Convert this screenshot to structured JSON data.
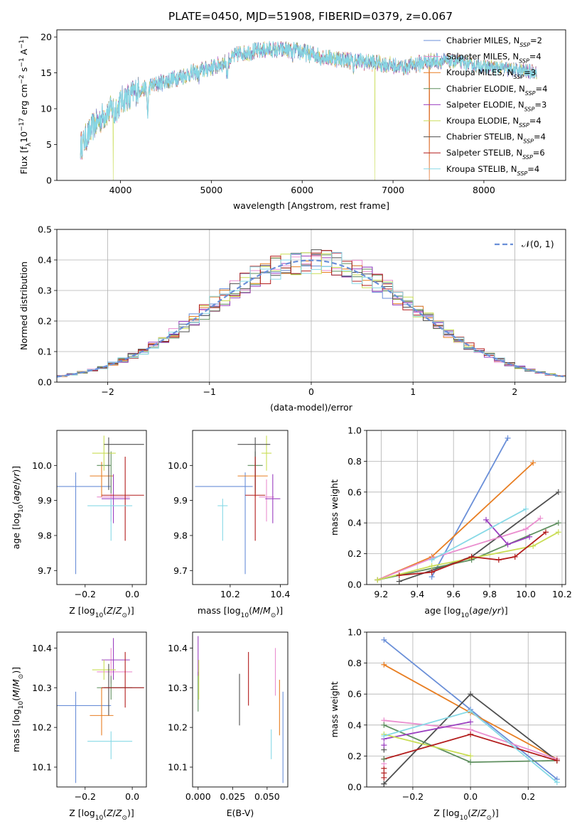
{
  "figure_title": "PLATE=0450, MJD=51908, FIBERID=0379, z=0.067",
  "colors": {
    "c1": "#6a8fd8",
    "c2": "#e87e22",
    "c3": "#4f4f4f",
    "c4": "#ea8ecf",
    "c5": "#5f8f5f",
    "c6": "#9b3fc0",
    "c7": "#c9dd55",
    "c8": "#b31d1d",
    "c9": "#87d9e6"
  },
  "chart_data": [
    {
      "id": "spectrum",
      "type": "line",
      "xlabel": "wavelength [Angstrom, rest frame]",
      "ylabel": "Flux [f_λ10^-17 erg cm^-2 s^-1 A^-1]",
      "xlim": [
        3300,
        8900
      ],
      "ylim": [
        0,
        21
      ],
      "xticks": [
        4000,
        5000,
        6000,
        7000,
        8000
      ],
      "yticks": [
        0,
        5,
        10,
        15,
        20
      ],
      "legend_position": "upper right",
      "grid": false,
      "continuum_knots": [
        [
          3550,
          4.5
        ],
        [
          3700,
          7.5
        ],
        [
          3850,
          9.5
        ],
        [
          4000,
          11
        ],
        [
          4150,
          12.3
        ],
        [
          4300,
          13
        ],
        [
          4500,
          13.8
        ],
        [
          4800,
          15
        ],
        [
          5100,
          16.1
        ],
        [
          5300,
          17.7
        ],
        [
          5600,
          18.2
        ],
        [
          5900,
          18.2
        ],
        [
          6200,
          17.3
        ],
        [
          6500,
          16.8
        ],
        [
          6800,
          16.4
        ],
        [
          7100,
          15.8
        ],
        [
          7400,
          16.6
        ],
        [
          7700,
          16.6
        ],
        [
          7900,
          16.0
        ],
        [
          8050,
          15.8
        ],
        [
          8200,
          15.6
        ],
        [
          8400,
          15.3
        ],
        [
          8600,
          15.1
        ]
      ],
      "absorption_features": [
        [
          3934,
          1.5
        ],
        [
          3969,
          1.0
        ],
        [
          4102,
          1.0
        ],
        [
          4300,
          3.5
        ],
        [
          4861,
          1.0
        ],
        [
          5175,
          2.0
        ],
        [
          5890,
          1.0
        ],
        [
          6563,
          1.0
        ]
      ],
      "spikes": [
        [
          3920,
          0
        ],
        [
          6800,
          0
        ],
        [
          7400,
          0
        ]
      ],
      "series": [
        {
          "name": "Chabrier MILES, N_SSP=2",
          "color_key": "c1"
        },
        {
          "name": "Salpeter MILES, N_SSP=4",
          "color_key": "c4"
        },
        {
          "name": "Kroupa MILES, N_SSP=3",
          "color_key": "c2"
        },
        {
          "name": "Chabrier ELODIE, N_SSP=4",
          "color_key": "c5"
        },
        {
          "name": "Salpeter ELODIE, N_SSP=3",
          "color_key": "c6"
        },
        {
          "name": "Kroupa ELODIE, N_SSP=4",
          "color_key": "c7"
        },
        {
          "name": "Chabrier STELIB, N_SSP=4",
          "color_key": "c3"
        },
        {
          "name": "Salpeter STELIB, N_SSP=6",
          "color_key": "c8"
        },
        {
          "name": "Kroupa STELIB, N_SSP=4",
          "color_key": "c9"
        }
      ],
      "legend_items": [
        {
          "prefix": "Chabrier MILES, N",
          "sub": "SSP",
          "suffix": "=2",
          "color_key": "c1"
        },
        {
          "prefix": "Salpeter MILES, N",
          "sub": "SSP",
          "suffix": "=4",
          "color_key": "c4"
        },
        {
          "prefix": "Kroupa MILES, N",
          "sub": "SSP",
          "suffix": "=3",
          "color_key": "c2"
        },
        {
          "prefix": "Chabrier ELODIE, N",
          "sub": "SSP",
          "suffix": "=4",
          "color_key": "c5"
        },
        {
          "prefix": "Salpeter ELODIE, N",
          "sub": "SSP",
          "suffix": "=3",
          "color_key": "c6"
        },
        {
          "prefix": "Kroupa ELODIE, N",
          "sub": "SSP",
          "suffix": "=4",
          "color_key": "c7"
        },
        {
          "prefix": "Chabrier STELIB, N",
          "sub": "SSP",
          "suffix": "=4",
          "color_key": "c3"
        },
        {
          "prefix": "Salpeter STELIB, N",
          "sub": "SSP",
          "suffix": "=6",
          "color_key": "c8"
        },
        {
          "prefix": "Kroupa STELIB, N",
          "sub": "SSP",
          "suffix": "=4",
          "color_key": "c9"
        }
      ]
    },
    {
      "id": "residual_hist",
      "type": "histogram",
      "xlabel": "(data-model)/error",
      "ylabel": "Normed distribution",
      "xlim": [
        -2.5,
        2.5
      ],
      "ylim": [
        0,
        0.5
      ],
      "xticks": [
        -2,
        -1,
        0,
        1,
        2
      ],
      "yticks": [
        0.0,
        0.1,
        0.2,
        0.3,
        0.4,
        0.5
      ],
      "bin_width": 0.1,
      "grid": true,
      "legend_position": "upper right",
      "reference_curve": {
        "name": "N(0,1)",
        "mean": 0,
        "sigma": 1,
        "color_key": "c1"
      },
      "legend_label": "𝒩(0, 1)",
      "series_color_keys": [
        "c1",
        "c4",
        "c2",
        "c5",
        "c6",
        "c7",
        "c3",
        "c8",
        "c9"
      ]
    },
    {
      "id": "age_vs_z",
      "type": "errorbar",
      "xlabel": "Z [log10(Z/Z☉)]",
      "ylabel": "age [log10(age/yr)]",
      "xlim": [
        -0.32,
        0.06
      ],
      "ylim": [
        9.66,
        10.1
      ],
      "xticks": [
        -0.2,
        0.0
      ],
      "yticks": [
        9.7,
        9.8,
        9.9,
        10.0
      ],
      "points": [
        {
          "color_key": "c1",
          "x": -0.24,
          "xerr": [
            0.08,
            0.15
          ],
          "y": 9.94,
          "yerr": [
            0.25,
            0.04
          ]
        },
        {
          "color_key": "c4",
          "x": -0.09,
          "xerr": [
            0.06,
            0.08
          ],
          "y": 9.91,
          "yerr": [
            0.07,
            0.05
          ]
        },
        {
          "color_key": "c2",
          "x": -0.13,
          "xerr": [
            0.05,
            0.05
          ],
          "y": 9.97,
          "yerr": [
            0.06,
            0.04
          ]
        },
        {
          "color_key": "c5",
          "x": -0.09,
          "xerr": [
            0.06,
            0.0
          ],
          "y": 10.0,
          "yerr": [
            0.08,
            0.04
          ]
        },
        {
          "color_key": "c6",
          "x": -0.08,
          "xerr": [
            0.05,
            0.07
          ],
          "y": 9.905,
          "yerr": [
            0.07,
            0.07
          ]
        },
        {
          "color_key": "c7",
          "x": -0.12,
          "xerr": [
            0.05,
            0.05
          ],
          "y": 10.035,
          "yerr": [
            0.05,
            0.05
          ]
        },
        {
          "color_key": "c3",
          "x": -0.1,
          "xerr": [
            0.02,
            0.15
          ],
          "y": 10.06,
          "yerr": [
            0.13,
            0.02
          ]
        },
        {
          "color_key": "c8",
          "x": -0.03,
          "xerr": [
            0.1,
            0.08
          ],
          "y": 9.915,
          "yerr": [
            0.13,
            0.11
          ]
        },
        {
          "color_key": "c9",
          "x": -0.09,
          "xerr": [
            0.1,
            0.09
          ],
          "y": 9.885,
          "yerr": [
            0.1,
            0.02
          ]
        }
      ]
    },
    {
      "id": "age_vs_mass",
      "type": "errorbar",
      "xlabel": "mass [log10(M/M☉)]",
      "ylabel": "",
      "xlim": [
        10.05,
        10.43
      ],
      "ylim": [
        9.66,
        10.1
      ],
      "xticks": [
        10.2,
        10.4
      ],
      "yticks": [
        9.7,
        9.8,
        9.9,
        10.0
      ],
      "points": [
        {
          "color_key": "c1",
          "x": 10.26,
          "xerr": [
            0.2,
            0.03
          ],
          "y": 9.94,
          "yerr": [
            0.25,
            0.04
          ]
        },
        {
          "color_key": "c4",
          "x": 10.345,
          "xerr": [
            0.03,
            0.03
          ],
          "y": 9.91,
          "yerr": [
            0.07,
            0.05
          ]
        },
        {
          "color_key": "c2",
          "x": 10.3,
          "xerr": [
            0.07,
            0.05
          ],
          "y": 9.97,
          "yerr": [
            0.06,
            0.04
          ]
        },
        {
          "color_key": "c5",
          "x": 10.3,
          "xerr": [
            0.03,
            0.03
          ],
          "y": 10.0,
          "yerr": [
            0.08,
            0.04
          ]
        },
        {
          "color_key": "c6",
          "x": 10.37,
          "xerr": [
            0.03,
            0.03
          ],
          "y": 9.905,
          "yerr": [
            0.07,
            0.07
          ]
        },
        {
          "color_key": "c7",
          "x": 10.345,
          "xerr": [
            0.02,
            0.02
          ],
          "y": 10.035,
          "yerr": [
            0.05,
            0.05
          ]
        },
        {
          "color_key": "c3",
          "x": 10.3,
          "xerr": [
            0.07,
            0.06
          ],
          "y": 10.06,
          "yerr": [
            0.13,
            0.02
          ]
        },
        {
          "color_key": "c8",
          "x": 10.3,
          "xerr": [
            0.04,
            0.04
          ],
          "y": 9.915,
          "yerr": [
            0.13,
            0.11
          ]
        },
        {
          "color_key": "c9",
          "x": 10.17,
          "xerr": [
            0.02,
            0.02
          ],
          "y": 9.885,
          "yerr": [
            0.1,
            0.02
          ]
        }
      ]
    },
    {
      "id": "weight_vs_age",
      "type": "line",
      "xlabel": "age [log10(age/yr)]",
      "ylabel": "mass weight",
      "xlim": [
        9.12,
        10.22
      ],
      "ylim": [
        0,
        1
      ],
      "xticks": [
        9.2,
        9.4,
        9.6,
        9.8,
        10.0,
        10.2
      ],
      "yticks": [
        0.0,
        0.2,
        0.4,
        0.6,
        0.8,
        1.0
      ],
      "grid": true,
      "series": [
        {
          "color_key": "c1",
          "x": [
            9.48,
            9.9
          ],
          "y": [
            0.05,
            0.95
          ]
        },
        {
          "color_key": "c2",
          "x": [
            9.18,
            9.48,
            10.04
          ],
          "y": [
            0.03,
            0.18,
            0.79
          ]
        },
        {
          "color_key": "c3",
          "x": [
            9.3,
            9.7,
            10.18
          ],
          "y": [
            0.02,
            0.18,
            0.6
          ]
        },
        {
          "color_key": "c4",
          "x": [
            9.18,
            9.48,
            10.0,
            10.08
          ],
          "y": [
            0.03,
            0.17,
            0.36,
            0.43
          ]
        },
        {
          "color_key": "c5",
          "x": [
            9.18,
            9.7,
            10.18
          ],
          "y": [
            0.03,
            0.16,
            0.4
          ]
        },
        {
          "color_key": "c6",
          "x": [
            9.78,
            9.9,
            10.02
          ],
          "y": [
            0.42,
            0.26,
            0.31
          ]
        },
        {
          "color_key": "c7",
          "x": [
            9.18,
            9.48,
            10.04,
            10.18
          ],
          "y": [
            0.03,
            0.12,
            0.25,
            0.34
          ]
        },
        {
          "color_key": "c8",
          "x": [
            9.3,
            9.48,
            9.7,
            9.85,
            9.94,
            10.11
          ],
          "y": [
            0.06,
            0.08,
            0.18,
            0.16,
            0.18,
            0.34
          ]
        },
        {
          "color_key": "c9",
          "x": [
            9.48,
            10.0
          ],
          "y": [
            0.16,
            0.49
          ]
        }
      ]
    },
    {
      "id": "mass_vs_z",
      "type": "errorbar",
      "xlabel": "Z [log10(Z/Z☉)]",
      "ylabel": "mass [log10(M/M☉)]",
      "xlim": [
        -0.32,
        0.06
      ],
      "ylim": [
        10.05,
        10.44
      ],
      "xticks": [
        -0.2,
        0.0
      ],
      "yticks": [
        10.1,
        10.2,
        10.3,
        10.4
      ],
      "points": [
        {
          "color_key": "c1",
          "x": -0.24,
          "xerr": [
            0.08,
            0.15
          ],
          "y": 10.255,
          "yerr": [
            0.195,
            0.035
          ]
        },
        {
          "color_key": "c4",
          "x": -0.09,
          "xerr": [
            0.06,
            0.09
          ],
          "y": 10.34,
          "yerr": [
            0.03,
            0.06
          ]
        },
        {
          "color_key": "c2",
          "x": -0.13,
          "xerr": [
            0.05,
            0.05
          ],
          "y": 10.23,
          "yerr": [
            0.05,
            0.07
          ]
        },
        {
          "color_key": "c5",
          "x": -0.09,
          "xerr": [
            0.06,
            0.09
          ],
          "y": 10.3,
          "yerr": [
            0.03,
            0.03
          ]
        },
        {
          "color_key": "c6",
          "x": -0.08,
          "xerr": [
            0.05,
            0.07
          ],
          "y": 10.37,
          "yerr": [
            0.05,
            0.055
          ]
        },
        {
          "color_key": "c7",
          "x": -0.12,
          "xerr": [
            0.05,
            0.05
          ],
          "y": 10.345,
          "yerr": [
            0.025,
            0.025
          ]
        },
        {
          "color_key": "c3",
          "x": -0.1,
          "xerr": [
            0.02,
            0.15
          ],
          "y": 10.3,
          "yerr": [
            0.07,
            0.06
          ]
        },
        {
          "color_key": "c8",
          "x": -0.03,
          "xerr": [
            0.1,
            0.08
          ],
          "y": 10.3,
          "yerr": [
            0.05,
            0.09
          ]
        },
        {
          "color_key": "c9",
          "x": -0.09,
          "xerr": [
            0.1,
            0.09
          ],
          "y": 10.165,
          "yerr": [
            0.045,
            0.025
          ]
        }
      ]
    },
    {
      "id": "mass_vs_ebv",
      "type": "errorbar",
      "xlabel": "E(B-V)",
      "ylabel": "",
      "xlim": [
        -0.004,
        0.065
      ],
      "ylim": [
        10.05,
        10.44
      ],
      "xticks": [
        0.0,
        0.025,
        0.05
      ],
      "yticks": [
        10.1,
        10.2,
        10.3,
        10.4
      ],
      "tick_labels_x": [
        "0.000",
        "0.025",
        "0.050"
      ],
      "points": [
        {
          "color_key": "c1",
          "x": 0.0615,
          "y": 10.17,
          "yerr": [
            0.11,
            0.12
          ]
        },
        {
          "color_key": "c4",
          "x": 0.056,
          "y": 10.34,
          "yerr": [
            0.06,
            0.06
          ]
        },
        {
          "color_key": "c2",
          "x": 0.059,
          "y": 10.25,
          "yerr": [
            0.07,
            0.07
          ]
        },
        {
          "color_key": "c5",
          "x": 0.0,
          "y": 10.29,
          "yerr": [
            0.05,
            0.05
          ]
        },
        {
          "color_key": "c6",
          "x": 0.0,
          "y": 10.38,
          "yerr": [
            0.05,
            0.05
          ]
        },
        {
          "color_key": "c7",
          "x": 0.0005,
          "y": 10.32,
          "yerr": [
            0.05,
            0.05
          ]
        },
        {
          "color_key": "c3",
          "x": 0.03,
          "y": 10.27,
          "yerr": [
            0.065,
            0.065
          ]
        },
        {
          "color_key": "c8",
          "x": 0.0365,
          "y": 10.32,
          "yerr": [
            0.065,
            0.07
          ]
        },
        {
          "color_key": "c9",
          "x": 0.053,
          "y": 10.15,
          "yerr": [
            0.03,
            0.045
          ]
        }
      ]
    },
    {
      "id": "weight_vs_z",
      "type": "line",
      "xlabel": "Z [log10(Z/Z☉)]",
      "ylabel": "mass weight",
      "xlim": [
        -0.36,
        0.33
      ],
      "ylim": [
        0,
        1
      ],
      "xticks": [
        -0.2,
        0.0,
        0.2
      ],
      "yticks": [
        0.0,
        0.2,
        0.4,
        0.6,
        0.8,
        1.0
      ],
      "grid": true,
      "series": [
        {
          "color_key": "c1",
          "x": [
            -0.3,
            0.0,
            0.3
          ],
          "y": [
            0.95,
            0.5,
            0.05
          ]
        },
        {
          "color_key": "c2",
          "x": [
            -0.3,
            0.0,
            0.3
          ],
          "y": [
            0.79,
            0.48,
            0.18
          ]
        },
        {
          "color_key": "c3",
          "x": [
            -0.3,
            0.0,
            0.3
          ],
          "y": [
            0.02,
            0.6,
            0.17
          ]
        },
        {
          "color_key": "c4",
          "x": [
            -0.3,
            0.0,
            0.3
          ],
          "y": [
            0.43,
            0.37,
            0.18
          ]
        },
        {
          "color_key": "c5",
          "x": [
            -0.3,
            0.0,
            0.3
          ],
          "y": [
            0.4,
            0.16,
            0.17
          ]
        },
        {
          "color_key": "c6",
          "x": [
            -0.3,
            0.0
          ],
          "y": [
            0.31,
            0.42
          ]
        },
        {
          "color_key": "c7",
          "x": [
            -0.3,
            0.0
          ],
          "y": [
            0.34,
            0.2
          ]
        },
        {
          "color_key": "c8",
          "x": [
            -0.3,
            0.0,
            0.3
          ],
          "y": [
            0.18,
            0.34,
            0.17
          ]
        },
        {
          "color_key": "c9",
          "x": [
            -0.3,
            0.0,
            0.3
          ],
          "y": [
            0.33,
            0.49,
            0.03
          ]
        }
      ],
      "markers_at_min": [
        0.02,
        0.06,
        0.09,
        0.12,
        0.15,
        0.18,
        0.24,
        0.27
      ]
    }
  ]
}
